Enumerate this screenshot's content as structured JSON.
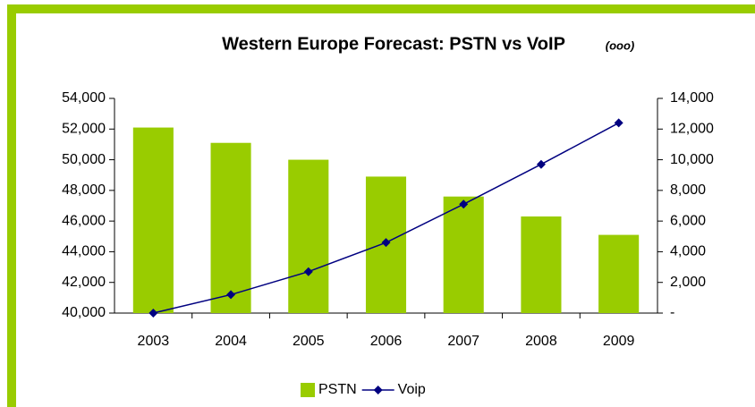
{
  "chart_data": {
    "type": "bar_line",
    "title": "Western Europe Forecast: PSTN vs VoIP",
    "subtitle": "(ooo)",
    "categories": [
      "2003",
      "2004",
      "2005",
      "2006",
      "2007",
      "2008",
      "2009"
    ],
    "series": [
      {
        "name": "PSTN",
        "color": "#99cc00",
        "type": "bar",
        "values": [
          52100,
          51100,
          50000,
          48900,
          47600,
          46300,
          45100
        ]
      },
      {
        "name": "Voip",
        "color": "#000080",
        "type": "line",
        "axis": "y2",
        "values": [
          0,
          1200,
          2700,
          4600,
          7100,
          9700,
          12400
        ]
      }
    ],
    "ylim": [
      40000,
      54000
    ],
    "yticks": [
      {
        "value": 40000,
        "label": "40,000"
      },
      {
        "value": 42000,
        "label": "42,000"
      },
      {
        "value": 44000,
        "label": "44,000"
      },
      {
        "value": 46000,
        "label": "46,000"
      },
      {
        "value": 48000,
        "label": "48,000"
      },
      {
        "value": 50000,
        "label": "50,000"
      },
      {
        "value": 52000,
        "label": "52,000"
      },
      {
        "value": 54000,
        "label": "54,000"
      }
    ],
    "y2lim": [
      0,
      14000
    ],
    "y2ticks": [
      {
        "value": 0,
        "label": "-"
      },
      {
        "value": 2000,
        "label": "2,000"
      },
      {
        "value": 4000,
        "label": "4,000"
      },
      {
        "value": 6000,
        "label": "6,000"
      },
      {
        "value": 8000,
        "label": "8,000"
      },
      {
        "value": 10000,
        "label": "10,000"
      },
      {
        "value": 12000,
        "label": "12,000"
      },
      {
        "value": 14000,
        "label": "14,000"
      }
    ],
    "grid": false,
    "legend": "bottom"
  }
}
